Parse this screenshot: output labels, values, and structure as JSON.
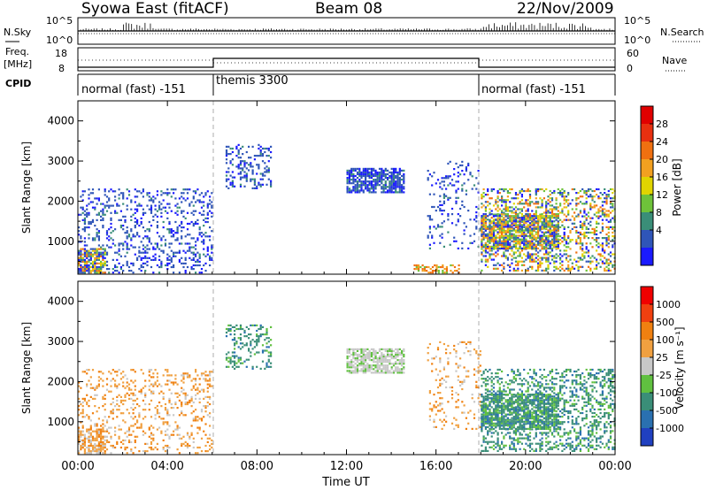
{
  "header": {
    "station": "Syowa East (fitACF)",
    "beam": "Beam 08",
    "date": "22/Nov/2009"
  },
  "top_panels": {
    "nsky_label": "N.Sky",
    "nsky_ticks": [
      "10^5",
      "10^0"
    ],
    "nsearch_label": "N.Search",
    "nsearch_ticks": [
      "10^5",
      "10^0"
    ],
    "freq_label_1": "Freq.",
    "freq_label_2": "[MHz]",
    "freq_ticks": [
      "18",
      "8"
    ],
    "nave_label": "Nave",
    "nave_ticks": [
      "60",
      "0"
    ],
    "cpid_label": "CPID",
    "cpid_segments": [
      {
        "label": "normal (fast) -151",
        "start": 0,
        "end": 6
      },
      {
        "label": "themis 3300",
        "start": 6,
        "end": 18
      },
      {
        "label": "normal (fast) -151",
        "start": 18,
        "end": 24
      }
    ]
  },
  "chart_data": [
    {
      "type": "heatmap",
      "name": "power",
      "ylabel": "Slant Range [km]",
      "ylim": [
        180,
        4500
      ],
      "y_ticks": [
        "1000",
        "2000",
        "3000",
        "4000"
      ],
      "xlim": [
        0,
        24
      ],
      "colorbar": {
        "label": "Power [dB]",
        "tick_labels": [
          "4",
          "8",
          "12",
          "16",
          "20",
          "24",
          "28"
        ],
        "colors": [
          "#1a1aff",
          "#2f55b8",
          "#3a8e78",
          "#6ec23a",
          "#e0d400",
          "#f2a020",
          "#f07010",
          "#e83010",
          "#e00000"
        ]
      },
      "regions": [
        {
          "t": [
            0,
            6
          ],
          "r": [
            200,
            2300
          ],
          "density": 0.24,
          "level": "low"
        },
        {
          "t": [
            0,
            1.2
          ],
          "r": [
            200,
            800
          ],
          "density": 0.7,
          "level": "mixed"
        },
        {
          "t": [
            6.6,
            8.6
          ],
          "r": [
            2300,
            3400
          ],
          "density": 0.28,
          "level": "low"
        },
        {
          "t": [
            12.0,
            14.6
          ],
          "r": [
            2200,
            2800
          ],
          "density": 0.75,
          "level": "low"
        },
        {
          "t": [
            15.6,
            18.0
          ],
          "r": [
            800,
            3000
          ],
          "density": 0.12,
          "level": "low"
        },
        {
          "t": [
            15.0,
            17.0
          ],
          "r": [
            200,
            400
          ],
          "density": 0.5,
          "level": "high"
        },
        {
          "t": [
            18,
            24
          ],
          "r": [
            250,
            2300
          ],
          "density": 0.35,
          "level": "mixed"
        },
        {
          "t": [
            18,
            21.5
          ],
          "r": [
            800,
            1700
          ],
          "density": 0.7,
          "level": "mixed"
        }
      ]
    },
    {
      "type": "heatmap",
      "name": "velocity",
      "ylabel": "Slant Range [km]",
      "ylim": [
        180,
        4500
      ],
      "y_ticks": [
        "1000",
        "2000",
        "3000",
        "4000"
      ],
      "xlim": [
        0,
        24
      ],
      "colorbar": {
        "label": "Velocity [m s⁻¹]",
        "tick_labels": [
          "1000",
          "500",
          "100",
          "25",
          "-25",
          "-100",
          "-500",
          "-1000"
        ],
        "colors": [
          "#2040c0",
          "#2a70b0",
          "#3a8e78",
          "#60c040",
          "#c8c8c8",
          "#f0a040",
          "#f08010",
          "#f04010",
          "#f00000"
        ]
      },
      "regions": [
        {
          "t": [
            0,
            6
          ],
          "r": [
            200,
            2300
          ],
          "density": 0.2,
          "level": "negative"
        },
        {
          "t": [
            0,
            1.2
          ],
          "r": [
            200,
            800
          ],
          "density": 0.6,
          "level": "negative"
        },
        {
          "t": [
            6.6,
            8.6
          ],
          "r": [
            2300,
            3400
          ],
          "density": 0.28,
          "level": "positive"
        },
        {
          "t": [
            12.0,
            14.6
          ],
          "r": [
            2200,
            2800
          ],
          "density": 0.75,
          "level": "near-zero"
        },
        {
          "t": [
            15.6,
            18.0
          ],
          "r": [
            800,
            3000
          ],
          "density": 0.12,
          "level": "negative"
        },
        {
          "t": [
            18,
            24
          ],
          "r": [
            250,
            2300
          ],
          "density": 0.35,
          "level": "positive"
        },
        {
          "t": [
            18,
            21.5
          ],
          "r": [
            800,
            1700
          ],
          "density": 0.7,
          "level": "positive"
        }
      ]
    }
  ],
  "time_axis": {
    "label": "Time UT",
    "ticks": [
      "00:00",
      "04:00",
      "08:00",
      "12:00",
      "16:00",
      "20:00",
      "00:00"
    ]
  }
}
